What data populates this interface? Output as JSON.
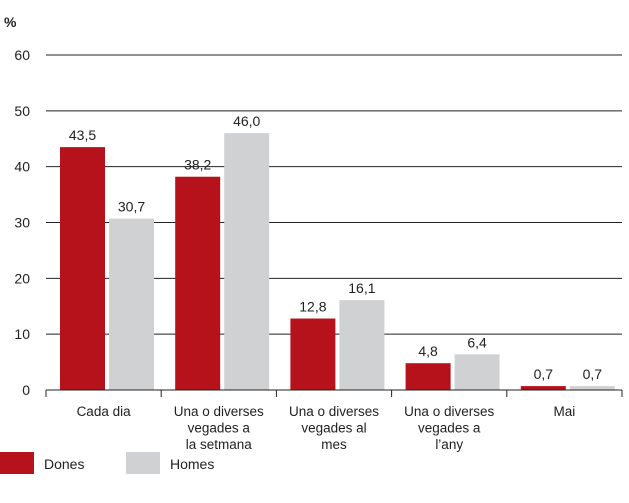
{
  "chart_data": {
    "type": "bar",
    "y_unit_label": "%",
    "categories": [
      [
        "Cada dia"
      ],
      [
        "Una o diverses",
        "vegades a",
        "la setmana"
      ],
      [
        "Una o diverses",
        "vegades al",
        "mes"
      ],
      [
        "Una o diverses",
        "vegades a",
        "l’any"
      ],
      [
        "Mai"
      ]
    ],
    "series": [
      {
        "name": "Dones",
        "color": "#b5121b",
        "values": [
          43.5,
          38.2,
          12.8,
          4.8,
          0.7
        ],
        "labels": [
          "43,5",
          "38,2",
          "12,8",
          "4,8",
          "0,7"
        ]
      },
      {
        "name": "Homes",
        "color": "#d0d1d3",
        "values": [
          30.7,
          46.0,
          16.1,
          6.4,
          0.7
        ],
        "labels": [
          "30,7",
          "46,0",
          "16,1",
          "6,4",
          "0,7"
        ]
      }
    ],
    "ylim": [
      0,
      60
    ],
    "yticks": [
      0,
      10,
      20,
      30,
      40,
      50,
      60
    ],
    "grid": true,
    "legend_position": "bottom-left",
    "title": "",
    "xlabel": "",
    "ylabel": ""
  }
}
